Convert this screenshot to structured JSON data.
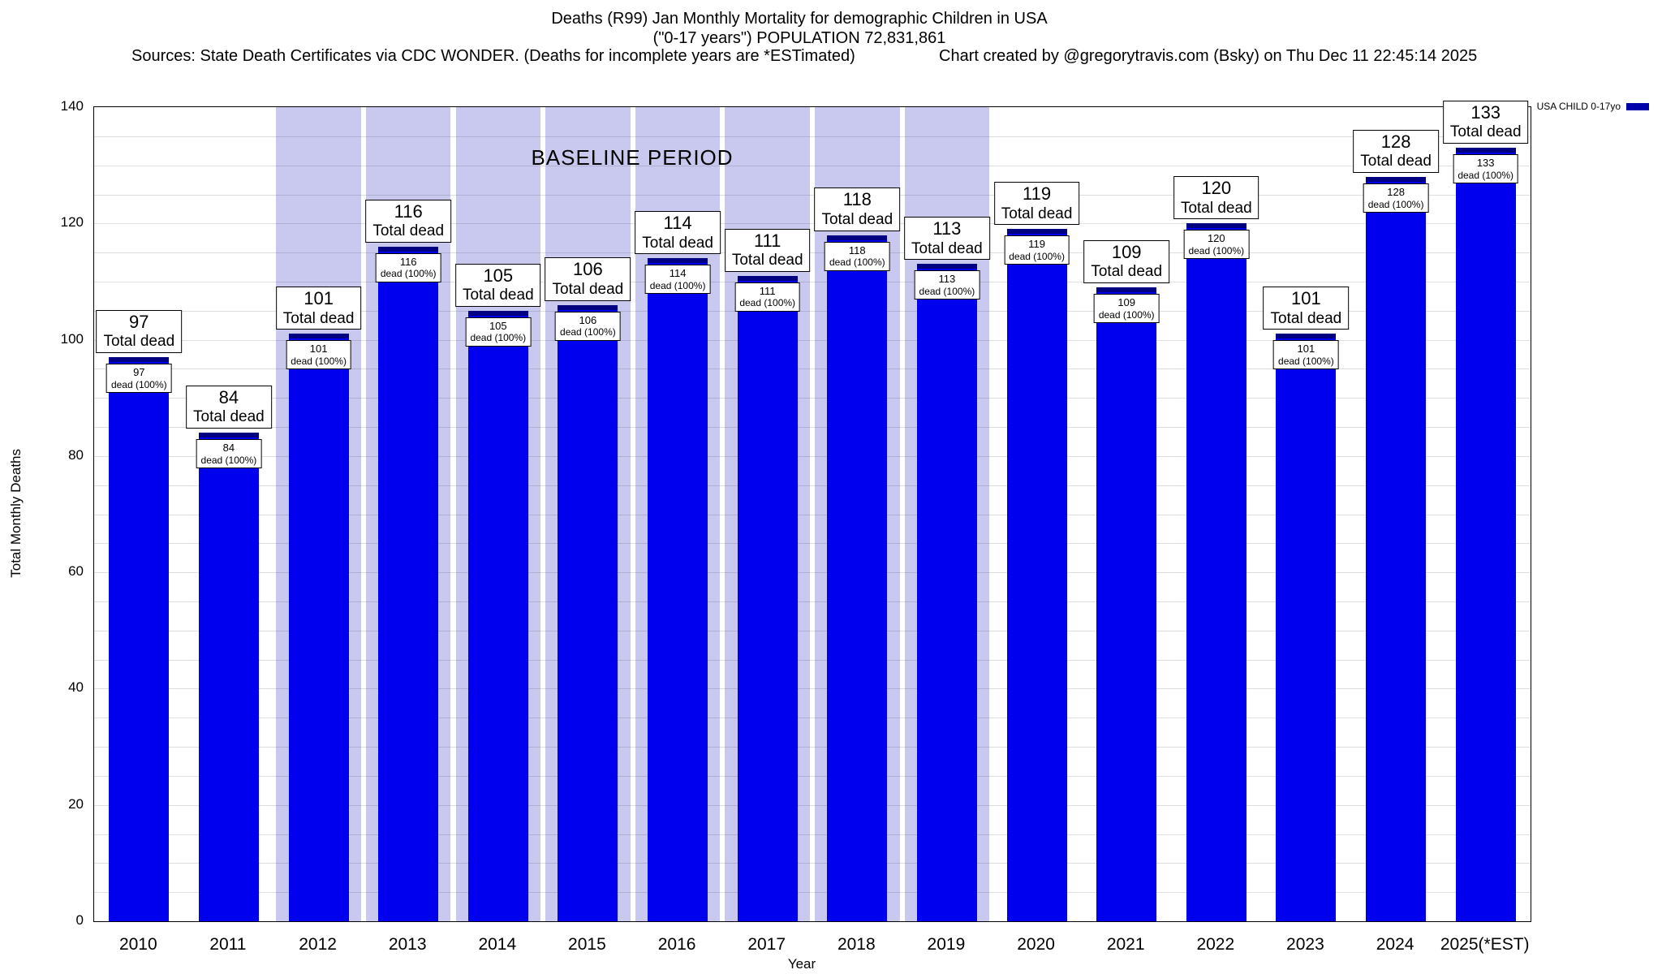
{
  "header": {
    "title_line1": "Deaths (R99) Jan Monthly Mortality for demographic Children in USA",
    "title_line2": "(\"0-17 years\") POPULATION 72,831,861",
    "sources": "Sources: State Death Certificates via CDC WONDER. (Deaths for incomplete years are *ESTimated)",
    "credit": "Chart created by @gregorytravis.com (Bsky) on Thu Dec 11 22:45:14 2025"
  },
  "legend": {
    "label": "USA CHILD 0-17yo",
    "color": "#0000aa"
  },
  "chart_data": {
    "type": "bar",
    "title": "Deaths (R99) Jan Monthly Mortality for demographic Children in USA",
    "subtitle": "(\"0-17 years\") POPULATION 72,831,861",
    "xlabel": "Year",
    "ylabel": "Total Monthly Deaths",
    "ylim": [
      0,
      140
    ],
    "ytick_step": 20,
    "grid_step": 5,
    "grid_on": true,
    "legend_position": "top-right",
    "legend_entries": [
      "USA CHILD 0-17yo"
    ],
    "bar_color": "#0000ee",
    "bar_cap_color": "#000080",
    "categories": [
      "2010",
      "2011",
      "2012",
      "2013",
      "2014",
      "2015",
      "2016",
      "2017",
      "2018",
      "2019",
      "2020",
      "2021",
      "2022",
      "2023",
      "2024",
      "2025(*EST)"
    ],
    "values": [
      97,
      84,
      101,
      116,
      105,
      106,
      114,
      111,
      118,
      113,
      119,
      109,
      120,
      101,
      128,
      133
    ],
    "bar_top_label_suffix": "Total dead",
    "bar_inner_label_suffix": "dead (100%)",
    "baseline_band": {
      "label": "BASELINE PERIOD",
      "start_category": "2012",
      "end_category": "2019",
      "color": "#c9c9ef"
    }
  }
}
